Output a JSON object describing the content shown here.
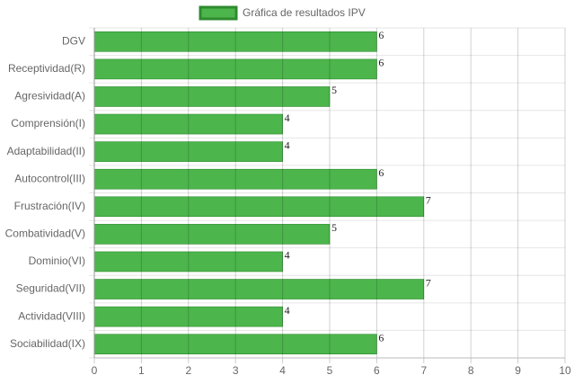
{
  "chart_data": {
    "type": "barh",
    "categories": [
      "DGV",
      "Receptividad(R)",
      "Agresividad(A)",
      "Comprensión(I)",
      "Adaptabilidad(II)",
      "Autocontrol(III)",
      "Frustración(IV)",
      "Combatividad(V)",
      "Dominio(VI)",
      "Seguridad(VII)",
      "Actividad(VIII)",
      "Sociabilidad(IX)"
    ],
    "series": [
      {
        "name": "Gráfica de resultados IPV",
        "color": "#4cb54c",
        "border_color": "#2e8b2e",
        "values": [
          6,
          6,
          5,
          4,
          4,
          6,
          7,
          5,
          4,
          7,
          4,
          6
        ]
      }
    ],
    "xlim": [
      0,
      10
    ],
    "xticks": [
      0,
      1,
      2,
      3,
      4,
      5,
      6,
      7,
      8,
      9,
      10
    ],
    "grid": true,
    "legend": "top"
  }
}
